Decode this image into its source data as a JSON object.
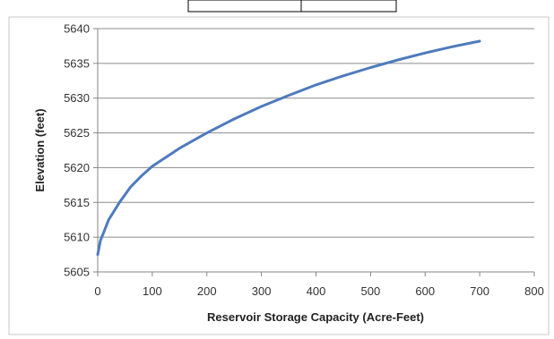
{
  "chart_data": {
    "type": "line",
    "title": "",
    "xlabel": "Reservoir Storage Capacity (Acre-Feet)",
    "ylabel": "Elevation (feet)",
    "xlim": [
      0,
      800
    ],
    "ylim": [
      5605,
      5640
    ],
    "xticks": [
      0,
      100,
      200,
      300,
      400,
      500,
      600,
      700,
      800
    ],
    "yticks": [
      5605,
      5610,
      5615,
      5620,
      5625,
      5630,
      5635,
      5640
    ],
    "grid": "horizontal",
    "legend": "none",
    "series": [
      {
        "color": "#4f7bbd",
        "x": [
          0,
          5,
          10,
          20,
          40,
          60,
          80,
          100,
          150,
          200,
          250,
          300,
          350,
          400,
          450,
          500,
          550,
          600,
          650,
          700
        ],
        "y": [
          5607.5,
          5609.5,
          5610.5,
          5612.5,
          5615.0,
          5617.2,
          5618.8,
          5620.2,
          5622.8,
          5625.0,
          5627.0,
          5628.8,
          5630.4,
          5631.9,
          5633.2,
          5634.4,
          5635.5,
          5636.5,
          5637.4,
          5638.2
        ]
      }
    ]
  }
}
